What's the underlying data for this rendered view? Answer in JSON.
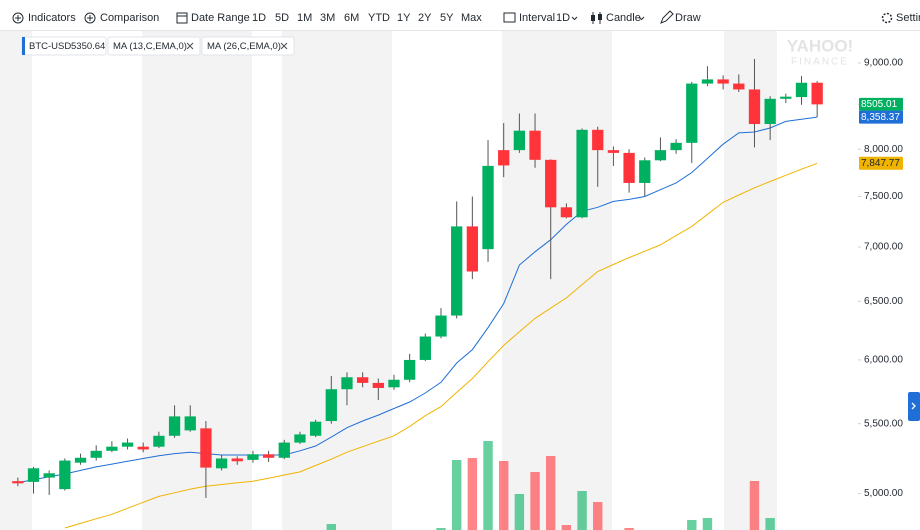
{
  "toolbar": {
    "indicators": "Indicators",
    "comparison": "Comparison",
    "date_range": "Date Range",
    "ranges": [
      "1D",
      "5D",
      "1M",
      "3M",
      "6M",
      "YTD",
      "1Y",
      "2Y",
      "5Y",
      "Max"
    ],
    "interval_label": "Interval",
    "interval": "1D",
    "chart_type": "Candle",
    "draw": "Draw",
    "settings": "Settin"
  },
  "watermark": [
    "YAHOO!",
    "FINANCE"
  ],
  "chart_data": {
    "type": "candlestick",
    "symbol": "BTC-USD",
    "symbol_value": 5350.64,
    "log_scale": true,
    "up_color": "#00b061",
    "down_color": "#ff333a",
    "categories": [
      null,
      null,
      null,
      null,
      null,
      null,
      null,
      null,
      null,
      null,
      null,
      null,
      null,
      null,
      null,
      null,
      null,
      null,
      null,
      null,
      null,
      null,
      null,
      null,
      null,
      null,
      null,
      null,
      null,
      null,
      null,
      null,
      null,
      null,
      null,
      null,
      null,
      null,
      null,
      null,
      null,
      null,
      null,
      null,
      null,
      null,
      null,
      null,
      null,
      null,
      null,
      null
    ],
    "open": [
      5085,
      5080,
      5110,
      5030,
      5215,
      5250,
      5300,
      5330,
      5330,
      5330,
      5410,
      5450,
      5465,
      5175,
      5245,
      5235,
      5275,
      5250,
      5360,
      5410,
      5520,
      5765,
      5860,
      5815,
      5780,
      5840,
      6000,
      6195,
      6375,
      7200,
      6980,
      7990,
      7990,
      8205,
      7885,
      7390,
      7290,
      8215,
      7990,
      7960,
      7640,
      7880,
      7990,
      8070,
      8750,
      8800,
      8750,
      8680,
      8280,
      8570,
      8590,
      8760
    ],
    "high": [
      5110,
      5185,
      5160,
      5245,
      5280,
      5340,
      5370,
      5390,
      5360,
      5440,
      5640,
      5640,
      5520,
      5270,
      5260,
      5300,
      5300,
      5380,
      5440,
      5530,
      5870,
      5900,
      5900,
      5850,
      5880,
      6050,
      6220,
      6440,
      7450,
      7500,
      8100,
      8290,
      8400,
      8400,
      7890,
      7430,
      8230,
      8250,
      8030,
      8000,
      7910,
      8130,
      8110,
      8770,
      8960,
      8850,
      8860,
      9050,
      8600,
      8630,
      8840,
      8780
    ],
    "low": [
      5050,
      5000,
      4990,
      5020,
      5200,
      5230,
      5290,
      5310,
      5290,
      5320,
      5395,
      5440,
      4970,
      5160,
      5200,
      5215,
      5220,
      5240,
      5350,
      5400,
      5500,
      5640,
      5780,
      5680,
      5760,
      5820,
      5990,
      6180,
      6350,
      6700,
      6860,
      7700,
      7960,
      7800,
      6700,
      7280,
      7280,
      7600,
      7820,
      7540,
      7500,
      7870,
      7950,
      7850,
      8720,
      8680,
      8650,
      8020,
      8100,
      8520,
      8500,
      8360
    ],
    "close": [
      5070,
      5175,
      5140,
      5230,
      5250,
      5300,
      5330,
      5360,
      5310,
      5410,
      5555,
      5555,
      5180,
      5245,
      5225,
      5275,
      5250,
      5360,
      5420,
      5515,
      5765,
      5860,
      5815,
      5775,
      5840,
      6000,
      6195,
      6375,
      7200,
      6770,
      7820,
      7825,
      8205,
      7885,
      7390,
      7290,
      8215,
      7990,
      7960,
      7640,
      7880,
      7990,
      8070,
      8750,
      8800,
      8750,
      8680,
      8280,
      8570,
      8595,
      8760,
      8505.01
    ],
    "series": [
      {
        "name": "MA (13,C,EMA,0)",
        "color": "#1f6fd6",
        "last_label": "8,358.37",
        "values": [
          5075,
          5095,
          5115,
          5135,
          5160,
          5185,
          5205,
          5225,
          5245,
          5265,
          5280,
          5290,
          5280,
          5270,
          5270,
          5270,
          5270,
          5270,
          5300,
          5335,
          5400,
          5470,
          5520,
          5565,
          5615,
          5665,
          5735,
          5820,
          5975,
          6085,
          6270,
          6480,
          6830,
          6955,
          7070,
          7220,
          7350,
          7390,
          7450,
          7470,
          7500,
          7570,
          7640,
          7750,
          7900,
          8055,
          8180,
          8190,
          8235,
          8310,
          8335,
          8358.37
        ]
      },
      {
        "name": "MA (26,C,EMA,0)",
        "color": "#f0b400",
        "last_label": "7,847.77",
        "values": [
          null,
          null,
          null,
          4770,
          4800,
          4830,
          4860,
          4900,
          4940,
          4980,
          5005,
          5030,
          5050,
          5062,
          5074,
          5085,
          5105,
          5128,
          5150,
          5195,
          5240,
          5290,
          5330,
          5370,
          5410,
          5480,
          5560,
          5630,
          5740,
          5850,
          5985,
          6120,
          6235,
          6350,
          6440,
          6530,
          6650,
          6770,
          6835,
          6900,
          6960,
          7020,
          7110,
          7200,
          7320,
          7440,
          7515,
          7590,
          7655,
          7720,
          7785,
          7847.77
        ]
      }
    ],
    "volume": {
      "ylim": [
        0,
        100
      ],
      "values": [
        null,
        null,
        null,
        null,
        null,
        null,
        null,
        null,
        null,
        null,
        null,
        null,
        null,
        null,
        null,
        null,
        null,
        null,
        null,
        null,
        6,
        null,
        null,
        null,
        null,
        null,
        null,
        2,
        70,
        72,
        89,
        69,
        36,
        58,
        74,
        5,
        39,
        28,
        null,
        2,
        null,
        null,
        null,
        10,
        12,
        null,
        null,
        49,
        12,
        null,
        null,
        null
      ]
    },
    "ylim": [
      4757,
      9414
    ],
    "yticks": [
      {
        "value": 5000,
        "label": "5,000.00"
      },
      {
        "value": 5500,
        "label": "5,500.00"
      },
      {
        "value": 6000,
        "label": "6,000.00"
      },
      {
        "value": 6500,
        "label": "6,500.00"
      },
      {
        "value": 7000,
        "label": "7,000.00"
      },
      {
        "value": 7500,
        "label": "7,500.00"
      },
      {
        "value": 8000,
        "label": "8,000.00"
      },
      {
        "value": 8500,
        "label": "8,500.00"
      },
      {
        "value": 9000,
        "label": "9,000.00"
      }
    ]
  }
}
